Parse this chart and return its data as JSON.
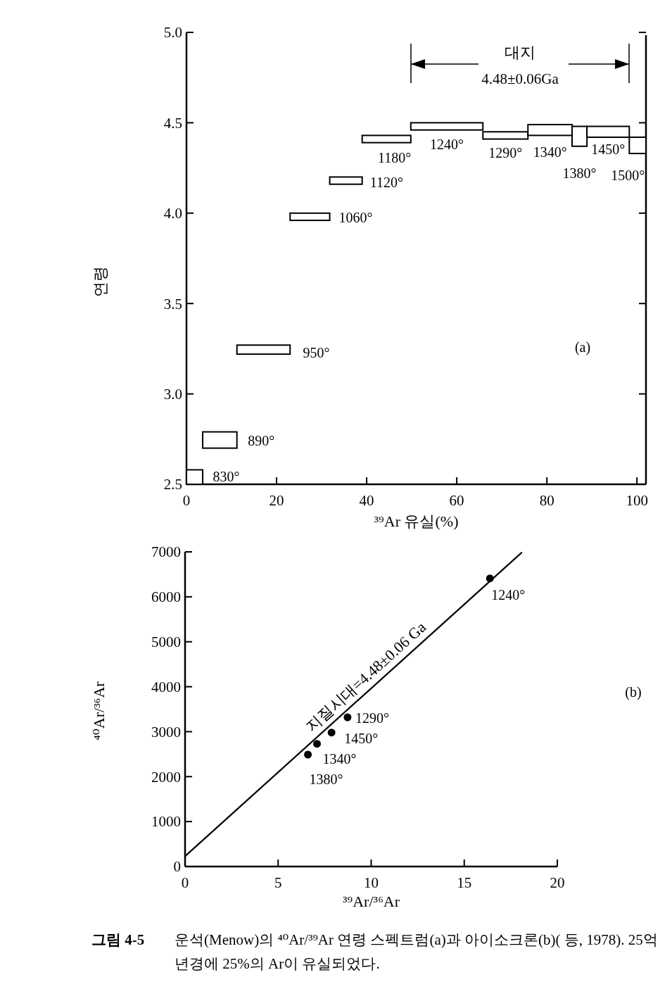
{
  "chart_data": [
    {
      "type": "histogram",
      "ylabel": "연령",
      "xlabel": "³⁹Ar 유실(%)",
      "color": "#ffffff",
      "bins": [
        0,
        3.6,
        11.2,
        23,
        31.8,
        39,
        49.8,
        65.8,
        75.8,
        85.6,
        88.9,
        98.3,
        102
      ],
      "values": [
        0.08,
        0.09,
        0.05,
        0.04,
        0.04,
        0.04,
        0.04,
        0.04,
        0.06,
        0.11,
        0.06,
        0.09
      ],
      "base": [
        2.5,
        2.7,
        3.22,
        3.96,
        4.16,
        4.39,
        4.46,
        4.41,
        4.43,
        4.37,
        4.42,
        4.33
      ],
      "xlim": [
        0,
        102
      ],
      "xticks": [
        0,
        20,
        40,
        60,
        80,
        100
      ],
      "ylim": [
        2.5,
        5.0
      ],
      "yticks": [
        {
          "value": 2.5,
          "label": "2.5"
        },
        {
          "value": 3,
          "label": "3.0"
        },
        {
          "value": 3.5,
          "label": "3.5"
        },
        {
          "value": 4,
          "label": "4.0"
        },
        {
          "value": 4.5,
          "label": "4.5"
        },
        {
          "value": 5,
          "label": "5.0"
        }
      ],
      "annotations": [
        "(a)",
        "대지",
        "4.48±0.06Ga",
        {
          "text": "830°",
          "x": 1.8,
          "y": 2.58
        },
        {
          "text": "890°",
          "x": 7.4,
          "y": 2.79
        },
        {
          "text": "950°",
          "x": 17.1,
          "y": 3.27
        },
        {
          "text": "1060°",
          "x": 27.4,
          "y": 4.0
        },
        {
          "text": "1120°",
          "x": 35.4,
          "y": 4.2
        },
        {
          "text": "1180°",
          "x": 44.4,
          "y": 4.43
        },
        {
          "text": "1240°",
          "x": 57.8,
          "y": 4.5
        },
        {
          "text": "1290°",
          "x": 70.8,
          "y": 4.45
        },
        {
          "text": "1340°",
          "x": 80.7,
          "y": 4.49
        },
        {
          "text": "1380°",
          "x": 87.25,
          "y": 4.48
        },
        {
          "text": "1450°",
          "x": 93.6,
          "y": 4.48
        },
        {
          "text": "1500°",
          "x": 100.15,
          "y": 4.42
        }
      ]
    },
    {
      "type": "scatter",
      "xlabel": "³⁹Ar/³⁶Ar",
      "ylabel": "⁴⁰Ar/³⁶Ar",
      "marker": "circle",
      "xlim": [
        0,
        20
      ],
      "xticks": [
        0,
        5,
        10,
        15,
        20
      ],
      "ylim": [
        0,
        7000
      ],
      "yticks": [
        0,
        1000,
        2000,
        3000,
        4000,
        5000,
        6000,
        7000
      ],
      "series": [
        {
          "type": "scatter",
          "color": "#000000",
          "x": [
            6.6,
            7.09,
            7.87,
            8.73,
            16.38
          ],
          "values": [
            2490,
            2730,
            2980,
            3320,
            6410
          ]
        },
        {
          "type": "line",
          "color": "#000000",
          "marker": "none",
          "x": [
            0,
            18.1
          ],
          "values": [
            230,
            6990
          ]
        }
      ],
      "annotations": [
        {
          "text": "지질시대=4.48±0.06 Ga",
          "x": 10.15,
          "y": 4020
        },
        "(b)",
        {
          "text": "1240°",
          "x": 16.38,
          "y": 6410
        },
        {
          "text": "1290°",
          "x": 8.73,
          "y": 3320
        },
        {
          "text": "1450°",
          "x": 7.87,
          "y": 2980
        },
        {
          "text": "1340°",
          "x": 7.09,
          "y": 2730
        },
        {
          "text": "1380°",
          "x": 6.6,
          "y": 2490
        }
      ]
    },
    {
      "type": "other",
      "annotations": [
        "그림 4-5",
        "운석(Menow)의 ⁴⁰Ar/³⁹Ar 연령 스펙트럼(a)과 아이소크론(b)( 등, 1978). 25억 년경에 25%의 Ar이 유실되었다."
      ]
    }
  ]
}
